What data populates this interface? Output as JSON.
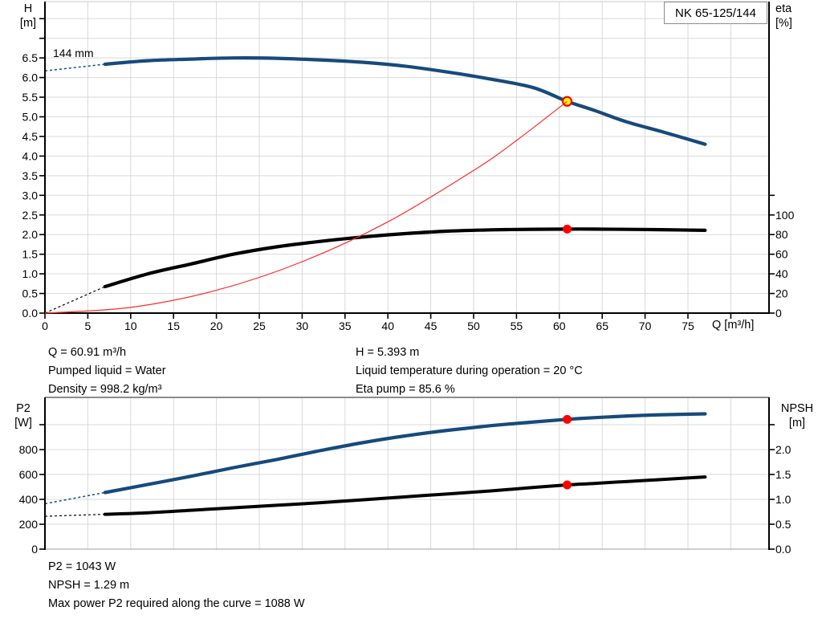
{
  "title_box": "NK 65-125/144",
  "colors": {
    "curve_blue": "#174a7c",
    "curve_black": "#000000",
    "curve_red": "#ff2a2a",
    "marker_red": "#ff0000",
    "marker_yellow": "#ffff00",
    "grid": "#d9d9d9",
    "axis": "#000000",
    "border_gray": "#8c8c8c",
    "border_light": "#9e9e9e",
    "text": "#000000"
  },
  "chart_data": [
    {
      "type": "line",
      "name": "qh-eta-chart",
      "title": "NK 65-125/144",
      "xlabel": "Q [m³/h]",
      "ylabel_left": [
        "H",
        "[m]"
      ],
      "ylabel_right": [
        "eta",
        "[%]"
      ],
      "annotation": "144 mm",
      "grid": true,
      "xlim": [
        0,
        84.5
      ],
      "ylim_left": [
        0,
        7.9
      ],
      "ylim_right": [
        0,
        317
      ],
      "x_ticks": {
        "values": [
          0,
          5,
          10,
          15,
          20,
          25,
          30,
          35,
          40,
          45,
          50,
          55,
          60,
          65,
          70,
          75,
          80
        ],
        "labels": [
          "0",
          "5",
          "10",
          "15",
          "20",
          "25",
          "30",
          "35",
          "40",
          "45",
          "50",
          "55",
          "60",
          "65",
          "70",
          "75",
          ""
        ]
      },
      "y_ticks_left": {
        "values": [
          0,
          0.5,
          1,
          1.5,
          2,
          2.5,
          3,
          3.5,
          4,
          4.5,
          5,
          5.5,
          6,
          6.5,
          7,
          7.5
        ],
        "labels": [
          "0.0",
          "0.5",
          "1.0",
          "1.5",
          "2.0",
          "2.5",
          "3.0",
          "3.5",
          "4.0",
          "4.5",
          "5.0",
          "5.5",
          "6.0",
          "6.5",
          "",
          ""
        ]
      },
      "y_ticks_right": {
        "values": [
          0,
          20,
          40,
          60,
          80,
          100,
          120
        ],
        "labels": [
          "0",
          "20",
          "40",
          "60",
          "80",
          "100",
          ""
        ]
      },
      "series": [
        {
          "name": "head-curve",
          "color": "blue",
          "axis": "left",
          "width": 4.2,
          "lead": [
            [
              0,
              6.17
            ],
            [
              7,
              6.34
            ]
          ],
          "points": [
            [
              7,
              6.34
            ],
            [
              12,
              6.43
            ],
            [
              17,
              6.47
            ],
            [
              22,
              6.5
            ],
            [
              27,
              6.49
            ],
            [
              32,
              6.45
            ],
            [
              37,
              6.39
            ],
            [
              42,
              6.29
            ],
            [
              47,
              6.14
            ],
            [
              52,
              5.96
            ],
            [
              57,
              5.74
            ],
            [
              60.91,
              5.393
            ],
            [
              64,
              5.17
            ],
            [
              68,
              4.86
            ],
            [
              72,
              4.62
            ],
            [
              77,
              4.3
            ]
          ]
        },
        {
          "name": "eta-curve",
          "color": "black",
          "axis": "right",
          "width": 4.2,
          "lead": [
            [
              0,
              0
            ],
            [
              7,
              27
            ]
          ],
          "points": [
            [
              7,
              27
            ],
            [
              12,
              40
            ],
            [
              17,
              50
            ],
            [
              22,
              60
            ],
            [
              27,
              67.5
            ],
            [
              32,
              73
            ],
            [
              37,
              77.5
            ],
            [
              42,
              81
            ],
            [
              47,
              83.5
            ],
            [
              52,
              84.8
            ],
            [
              57,
              85.4
            ],
            [
              60.91,
              85.6
            ],
            [
              64,
              85.6
            ],
            [
              68,
              85.3
            ],
            [
              72,
              85.0
            ],
            [
              77,
              84.3
            ]
          ]
        },
        {
          "name": "system-curve",
          "color": "red",
          "axis": "left",
          "width": 1.2,
          "points": [
            [
              0,
              0
            ],
            [
              10,
              0.145
            ],
            [
              20,
              0.581
            ],
            [
              30,
              1.308
            ],
            [
              40,
              2.325
            ],
            [
              50,
              3.633
            ],
            [
              55,
              4.396
            ],
            [
              60.91,
              5.393
            ]
          ]
        }
      ],
      "markers": [
        {
          "name": "duty-point",
          "q": 60.91,
          "v": 5.393,
          "axis": "left",
          "style": "yellow"
        },
        {
          "name": "eta-point",
          "q": 60.91,
          "v": 85.6,
          "axis": "right",
          "style": "red"
        }
      ]
    },
    {
      "type": "line",
      "name": "p2-npsh-chart",
      "xlabel": "",
      "ylabel_left": [
        "P2",
        "[W]"
      ],
      "ylabel_right": [
        "NPSH",
        "[m]"
      ],
      "grid": true,
      "xlim": [
        0,
        84.5
      ],
      "ylim_left": [
        0,
        1220
      ],
      "ylim_right": [
        0,
        3.05
      ],
      "x_ticks": {
        "values": [
          5,
          10,
          15,
          20,
          25,
          30,
          35,
          40,
          45,
          50,
          55,
          60,
          65,
          70,
          75,
          80
        ],
        "labels": [
          "",
          "",
          "",
          "",
          "",
          "",
          "",
          "",
          "",
          "",
          "",
          "",
          "",
          "",
          "",
          ""
        ]
      },
      "y_ticks_left": {
        "values": [
          0,
          200,
          400,
          600,
          800,
          1000
        ],
        "labels": [
          "0",
          "200",
          "400",
          "600",
          "800",
          ""
        ]
      },
      "y_ticks_right": {
        "values": [
          0,
          0.5,
          1,
          1.5,
          2,
          2.5
        ],
        "labels": [
          "0.0",
          "0.5",
          "1.0",
          "1.5",
          "2.0",
          ""
        ]
      },
      "series": [
        {
          "name": "p2-curve",
          "color": "blue",
          "axis": "left",
          "width": 4.2,
          "lead": [
            [
              0,
              365
            ],
            [
              7,
              455
            ]
          ],
          "points": [
            [
              7,
              455
            ],
            [
              12,
              520
            ],
            [
              17,
              585
            ],
            [
              22,
              655
            ],
            [
              27,
              720
            ],
            [
              32,
              790
            ],
            [
              37,
              855
            ],
            [
              42,
              910
            ],
            [
              47,
              955
            ],
            [
              52,
              992
            ],
            [
              57,
              1022
            ],
            [
              60.91,
              1043
            ],
            [
              64,
              1056
            ],
            [
              68,
              1070
            ],
            [
              72,
              1080
            ],
            [
              77,
              1087
            ]
          ]
        },
        {
          "name": "npsh-curve",
          "color": "black",
          "axis": "right",
          "width": 4,
          "lead": [
            [
              0,
              0.66
            ],
            [
              7,
              0.7
            ]
          ],
          "points": [
            [
              7,
              0.7
            ],
            [
              12,
              0.73
            ],
            [
              17,
              0.78
            ],
            [
              22,
              0.83
            ],
            [
              27,
              0.88
            ],
            [
              32,
              0.93
            ],
            [
              37,
              0.99
            ],
            [
              42,
              1.05
            ],
            [
              47,
              1.11
            ],
            [
              52,
              1.17
            ],
            [
              57,
              1.24
            ],
            [
              60.91,
              1.29
            ],
            [
              64,
              1.32
            ],
            [
              68,
              1.36
            ],
            [
              72,
              1.4
            ],
            [
              77,
              1.45
            ]
          ]
        }
      ],
      "markers": [
        {
          "name": "p2-point",
          "q": 60.91,
          "v": 1043,
          "axis": "left",
          "style": "red"
        },
        {
          "name": "npsh-point",
          "q": 60.91,
          "v": 1.29,
          "axis": "right",
          "style": "red"
        }
      ]
    }
  ],
  "operating_point_info": {
    "left": [
      "Q = 60.91 m³/h",
      "Pumped liquid = Water",
      "Density = 998.2 kg/m³"
    ],
    "right": [
      "H = 5.393 m",
      "Liquid temperature during operation = 20 °C",
      "Eta pump = 85.6 %"
    ]
  },
  "power_info": [
    "P2 = 1043 W",
    "NPSH = 1.29 m",
    "Max power P2 required along the curve = 1088 W"
  ]
}
